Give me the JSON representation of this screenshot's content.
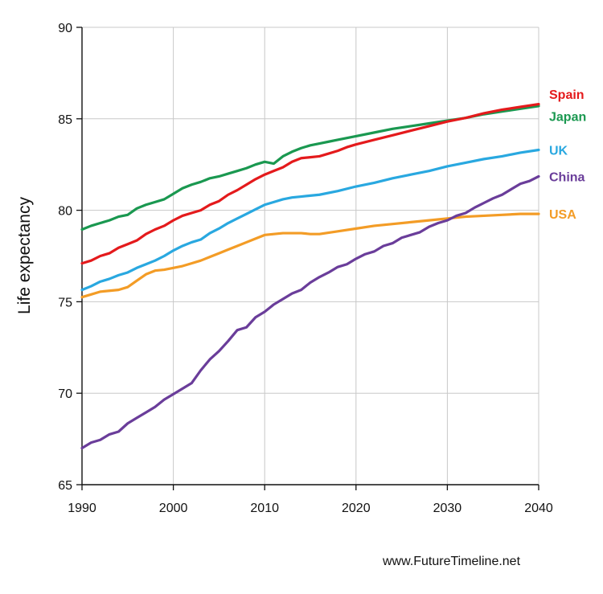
{
  "chart_data": {
    "type": "line",
    "title": "",
    "xlabel": "",
    "ylabel": "Life expectancy",
    "xlim": [
      1990,
      2040
    ],
    "ylim": [
      65,
      90
    ],
    "xticks": [
      1990,
      2000,
      2010,
      2020,
      2030,
      2040
    ],
    "yticks": [
      65,
      70,
      75,
      80,
      85,
      90
    ],
    "grid": true,
    "legend": "inline labels at line ends (right)",
    "series": [
      {
        "name": "Spain",
        "color": "#e41a1c",
        "x": [
          1990,
          1991,
          1992,
          1993,
          1994,
          1995,
          1996,
          1997,
          1998,
          1999,
          2000,
          2001,
          2002,
          2003,
          2004,
          2005,
          2006,
          2007,
          2008,
          2009,
          2010,
          2011,
          2012,
          2013,
          2014,
          2015,
          2016,
          2017,
          2018,
          2019,
          2020,
          2022,
          2024,
          2026,
          2028,
          2030,
          2032,
          2034,
          2036,
          2038,
          2040
        ],
        "values": [
          77.1,
          77.25,
          77.5,
          77.65,
          77.95,
          78.15,
          78.35,
          78.7,
          78.95,
          79.15,
          79.45,
          79.7,
          79.85,
          80.0,
          80.3,
          80.5,
          80.85,
          81.1,
          81.4,
          81.7,
          81.95,
          82.15,
          82.35,
          82.65,
          82.85,
          82.9,
          82.95,
          83.1,
          83.25,
          83.45,
          83.6,
          83.85,
          84.1,
          84.35,
          84.6,
          84.85,
          85.05,
          85.3,
          85.5,
          85.65,
          85.8
        ]
      },
      {
        "name": "Japan",
        "color": "#1a9850",
        "x": [
          1990,
          1991,
          1992,
          1993,
          1994,
          1995,
          1996,
          1997,
          1998,
          1999,
          2000,
          2001,
          2002,
          2003,
          2004,
          2005,
          2006,
          2007,
          2008,
          2009,
          2010,
          2011,
          2012,
          2013,
          2014,
          2015,
          2016,
          2017,
          2018,
          2019,
          2020,
          2022,
          2024,
          2026,
          2028,
          2030,
          2032,
          2034,
          2036,
          2038,
          2040
        ],
        "values": [
          78.95,
          79.15,
          79.3,
          79.45,
          79.65,
          79.75,
          80.1,
          80.3,
          80.45,
          80.6,
          80.9,
          81.2,
          81.4,
          81.55,
          81.75,
          81.85,
          82.0,
          82.15,
          82.3,
          82.5,
          82.65,
          82.55,
          82.95,
          83.2,
          83.4,
          83.55,
          83.65,
          83.75,
          83.85,
          83.95,
          84.05,
          84.25,
          84.45,
          84.6,
          84.75,
          84.9,
          85.05,
          85.25,
          85.4,
          85.55,
          85.7
        ]
      },
      {
        "name": "UK",
        "color": "#29a8e0",
        "x": [
          1990,
          1991,
          1992,
          1993,
          1994,
          1995,
          1996,
          1997,
          1998,
          1999,
          2000,
          2001,
          2002,
          2003,
          2004,
          2005,
          2006,
          2007,
          2008,
          2009,
          2010,
          2011,
          2012,
          2013,
          2014,
          2015,
          2016,
          2018,
          2020,
          2022,
          2024,
          2026,
          2028,
          2030,
          2032,
          2034,
          2036,
          2038,
          2040
        ],
        "values": [
          75.65,
          75.85,
          76.1,
          76.25,
          76.45,
          76.6,
          76.85,
          77.05,
          77.25,
          77.5,
          77.8,
          78.05,
          78.25,
          78.4,
          78.75,
          79.0,
          79.3,
          79.55,
          79.8,
          80.05,
          80.3,
          80.45,
          80.6,
          80.7,
          80.75,
          80.8,
          80.85,
          81.05,
          81.3,
          81.5,
          81.75,
          81.95,
          82.15,
          82.4,
          82.6,
          82.8,
          82.95,
          83.15,
          83.3
        ]
      },
      {
        "name": "China",
        "color": "#6a3d9a",
        "x": [
          1990,
          1991,
          1992,
          1993,
          1994,
          1995,
          1996,
          1997,
          1998,
          1999,
          2000,
          2001,
          2002,
          2003,
          2004,
          2005,
          2006,
          2007,
          2008,
          2009,
          2010,
          2011,
          2012,
          2013,
          2014,
          2015,
          2016,
          2017,
          2018,
          2019,
          2020,
          2021,
          2022,
          2023,
          2024,
          2025,
          2026,
          2027,
          2028,
          2029,
          2030,
          2031,
          2032,
          2033,
          2034,
          2035,
          2036,
          2037,
          2038,
          2039,
          2040
        ],
        "values": [
          67.0,
          67.3,
          67.45,
          67.75,
          67.9,
          68.35,
          68.65,
          68.95,
          69.25,
          69.65,
          69.95,
          70.25,
          70.55,
          71.25,
          71.85,
          72.3,
          72.85,
          73.45,
          73.6,
          74.15,
          74.45,
          74.85,
          75.15,
          75.45,
          75.65,
          76.05,
          76.35,
          76.6,
          76.9,
          77.05,
          77.35,
          77.6,
          77.75,
          78.05,
          78.2,
          78.5,
          78.65,
          78.8,
          79.1,
          79.3,
          79.45,
          79.7,
          79.85,
          80.15,
          80.4,
          80.65,
          80.85,
          81.15,
          81.45,
          81.6,
          81.85
        ]
      },
      {
        "name": "USA",
        "color": "#f39c26",
        "x": [
          1990,
          1991,
          1992,
          1993,
          1994,
          1995,
          1996,
          1997,
          1998,
          1999,
          2000,
          2001,
          2002,
          2003,
          2004,
          2005,
          2006,
          2007,
          2008,
          2009,
          2010,
          2011,
          2012,
          2013,
          2014,
          2015,
          2016,
          2018,
          2020,
          2022,
          2024,
          2026,
          2028,
          2030,
          2032,
          2034,
          2036,
          2038,
          2040
        ],
        "values": [
          75.25,
          75.4,
          75.55,
          75.6,
          75.65,
          75.8,
          76.15,
          76.5,
          76.7,
          76.75,
          76.85,
          76.95,
          77.1,
          77.25,
          77.45,
          77.65,
          77.85,
          78.05,
          78.25,
          78.45,
          78.65,
          78.7,
          78.75,
          78.75,
          78.75,
          78.7,
          78.7,
          78.85,
          79.0,
          79.15,
          79.25,
          79.35,
          79.45,
          79.55,
          79.65,
          79.7,
          79.75,
          79.8,
          79.8
        ]
      }
    ],
    "series_labels": [
      "Spain",
      "Japan",
      "UK",
      "China",
      "USA"
    ]
  },
  "watermark": "www.FutureTimeline.net"
}
